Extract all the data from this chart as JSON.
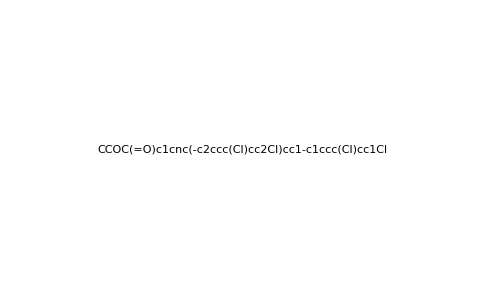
{
  "smiles": "CCOC(=O)c1cnc(-c2ccc(Cl)cc2Cl)cc1-c1ccc(Cl)cc1Cl",
  "title": "",
  "bg_color": "#ffffff",
  "bond_color": "#000000",
  "atom_colors": {
    "N": "#0000ff",
    "O": "#ff0000",
    "Cl": "#00aa00",
    "C": "#000000"
  },
  "figsize": [
    4.84,
    3.0
  ],
  "dpi": 100
}
